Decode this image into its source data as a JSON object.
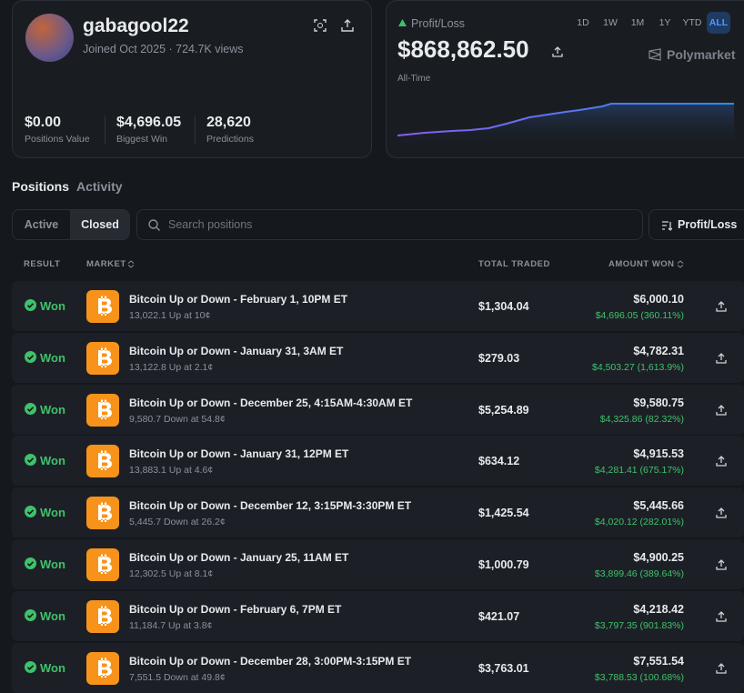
{
  "profile": {
    "username": "gabagool22",
    "joined": "Joined Oct 2025 · 724.7K views",
    "stats": [
      {
        "value": "$0.00",
        "label": "Positions Value"
      },
      {
        "value": "$4,696.05",
        "label": "Biggest Win"
      },
      {
        "value": "28,620",
        "label": "Predictions"
      }
    ]
  },
  "pnl": {
    "label": "Profit/Loss",
    "ranges": [
      "1D",
      "1W",
      "1M",
      "1Y",
      "YTD",
      "ALL"
    ],
    "amount": "$868,862.50",
    "period": "All-Time",
    "brand": "Polymarket"
  },
  "tabs": [
    "Positions",
    "Activity"
  ],
  "filters": [
    "Active",
    "Closed"
  ],
  "search": "Search positions",
  "sort": "Profit/Loss",
  "table": {
    "headers": [
      "RESULT",
      "MARKET",
      "TOTAL TRADED",
      "AMOUNT WON"
    ],
    "rows": [
      {
        "result": "Won",
        "title": "Bitcoin Up or Down - February 1, 10PM ET",
        "detail": "13,022.1 Up at 10¢",
        "traded": "$1,304.04",
        "won": "$6,000.10",
        "gain": "$4,696.05 (360.11%)"
      },
      {
        "result": "Won",
        "title": "Bitcoin Up or Down - January 31, 3AM ET",
        "detail": "13,122.8 Up at 2.1¢",
        "traded": "$279.03",
        "won": "$4,782.31",
        "gain": "$4,503.27 (1,613.9%)"
      },
      {
        "result": "Won",
        "title": "Bitcoin Up or Down - December 25, 4:15AM-4:30AM ET",
        "detail": "9,580.7 Down at 54.8¢",
        "traded": "$5,254.89",
        "won": "$9,580.75",
        "gain": "$4,325.86 (82.32%)"
      },
      {
        "result": "Won",
        "title": "Bitcoin Up or Down - January 31, 12PM ET",
        "detail": "13,883.1 Up at 4.6¢",
        "traded": "$634.12",
        "won": "$4,915.53",
        "gain": "$4,281.41 (675.17%)"
      },
      {
        "result": "Won",
        "title": "Bitcoin Up or Down - December 12, 3:15PM-3:30PM ET",
        "detail": "5,445.7 Down at 26.2¢",
        "traded": "$1,425.54",
        "won": "$5,445.66",
        "gain": "$4,020.12 (282.01%)"
      },
      {
        "result": "Won",
        "title": "Bitcoin Up or Down - January 25, 11AM ET",
        "detail": "12,302.5 Up at 8.1¢",
        "traded": "$1,000.79",
        "won": "$4,900.25",
        "gain": "$3,899.46 (389.64%)"
      },
      {
        "result": "Won",
        "title": "Bitcoin Up or Down - February 6, 7PM ET",
        "detail": "11,184.7 Up at 3.8¢",
        "traded": "$421.07",
        "won": "$4,218.42",
        "gain": "$3,797.35 (901.83%)"
      },
      {
        "result": "Won",
        "title": "Bitcoin Up or Down - December 28, 3:00PM-3:15PM ET",
        "detail": "7,551.5 Down at 49.8¢",
        "traded": "$3,763.01",
        "won": "$7,551.54",
        "gain": "$3,788.53 (100.68%)"
      }
    ]
  }
}
